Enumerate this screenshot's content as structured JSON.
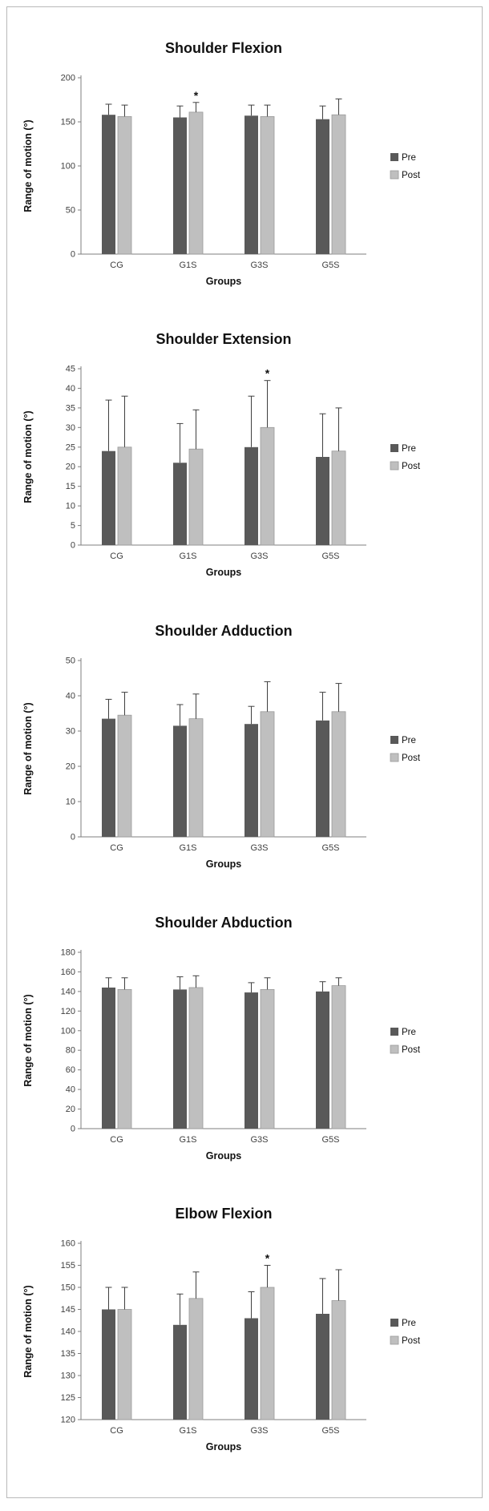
{
  "page": {
    "frame_border_color": "#b9b9b9",
    "background_color": "#ffffff"
  },
  "colors": {
    "pre_bar": "#595959",
    "post_bar": "#bfbfbf",
    "post_bar_stroke": "#9a9a9a",
    "error_bar": "#3f3f3f",
    "axis": "#7f7f7f",
    "tick_text": "#3f3f3f",
    "title_text": "#111111"
  },
  "chart_data": [
    {
      "type": "bar",
      "title": "Shoulder Flexion",
      "xlabel": "Groups",
      "ylabel": "Range of motion (°)",
      "categories": [
        "CG",
        "G1S",
        "G3S",
        "G5S"
      ],
      "series": [
        {
          "name": "Pre",
          "color": "#595959",
          "values": [
            158,
            155,
            157,
            153
          ],
          "errors": [
            12,
            13,
            12,
            15
          ]
        },
        {
          "name": "Post",
          "color": "#bfbfbf",
          "values": [
            156,
            161,
            156,
            158
          ],
          "errors": [
            13,
            11,
            13,
            18
          ]
        }
      ],
      "ylim": [
        0,
        200
      ],
      "ytick_step": 50,
      "legend_position": "right",
      "grid": false,
      "significance_marker": "*",
      "significance": [
        {
          "category": "G1S",
          "series": "Post"
        }
      ]
    },
    {
      "type": "bar",
      "title": "Shoulder Extension",
      "xlabel": "Groups",
      "ylabel": "Range of motion (°)",
      "categories": [
        "CG",
        "G1S",
        "G3S",
        "G5S"
      ],
      "series": [
        {
          "name": "Pre",
          "color": "#595959",
          "values": [
            24,
            21,
            25,
            22.5
          ],
          "errors": [
            13,
            10,
            13,
            11
          ]
        },
        {
          "name": "Post",
          "color": "#bfbfbf",
          "values": [
            25,
            24.5,
            30,
            24
          ],
          "errors": [
            13,
            10,
            12,
            11
          ]
        }
      ],
      "ylim": [
        0,
        45
      ],
      "ytick_step": 5,
      "legend_position": "right",
      "grid": false,
      "significance_marker": "*",
      "significance": [
        {
          "category": "G3S",
          "series": "Post"
        }
      ]
    },
    {
      "type": "bar",
      "title": "Shoulder Adduction",
      "xlabel": "Groups",
      "ylabel": "Range of motion (°)",
      "categories": [
        "CG",
        "G1S",
        "G3S",
        "G5S"
      ],
      "series": [
        {
          "name": "Pre",
          "color": "#595959",
          "values": [
            33.5,
            31.5,
            32,
            33
          ],
          "errors": [
            5.5,
            6,
            5,
            8
          ]
        },
        {
          "name": "Post",
          "color": "#bfbfbf",
          "values": [
            34.5,
            33.5,
            35.5,
            35.5
          ],
          "errors": [
            6.5,
            7,
            8.5,
            8
          ]
        }
      ],
      "ylim": [
        0,
        50
      ],
      "ytick_step": 10,
      "legend_position": "right",
      "grid": false,
      "significance_marker": "*",
      "significance": []
    },
    {
      "type": "bar",
      "title": "Shoulder Abduction",
      "xlabel": "Groups",
      "ylabel": "Range of motion (°)",
      "categories": [
        "CG",
        "G1S",
        "G3S",
        "G5S"
      ],
      "series": [
        {
          "name": "Pre",
          "color": "#595959",
          "values": [
            144,
            142,
            139,
            140
          ],
          "errors": [
            10,
            13,
            10,
            10
          ]
        },
        {
          "name": "Post",
          "color": "#bfbfbf",
          "values": [
            142,
            144,
            142,
            146
          ],
          "errors": [
            12,
            12,
            12,
            8
          ]
        }
      ],
      "ylim": [
        0,
        180
      ],
      "ytick_step": 20,
      "legend_position": "right",
      "grid": false,
      "significance_marker": "*",
      "significance": []
    },
    {
      "type": "bar",
      "title": "Elbow Flexion",
      "xlabel": "Groups",
      "ylabel": "Range of motion (°)",
      "categories": [
        "CG",
        "G1S",
        "G3S",
        "G5S"
      ],
      "series": [
        {
          "name": "Pre",
          "color": "#595959",
          "values": [
            145,
            141.5,
            143,
            144
          ],
          "errors": [
            5,
            7,
            6,
            8
          ]
        },
        {
          "name": "Post",
          "color": "#bfbfbf",
          "values": [
            145,
            147.5,
            150,
            147
          ],
          "errors": [
            5,
            6,
            5,
            7
          ]
        }
      ],
      "ylim": [
        120,
        160
      ],
      "ytick_step": 5,
      "legend_position": "right",
      "grid": false,
      "significance_marker": "*",
      "significance": [
        {
          "category": "G3S",
          "series": "Post"
        }
      ]
    }
  ]
}
